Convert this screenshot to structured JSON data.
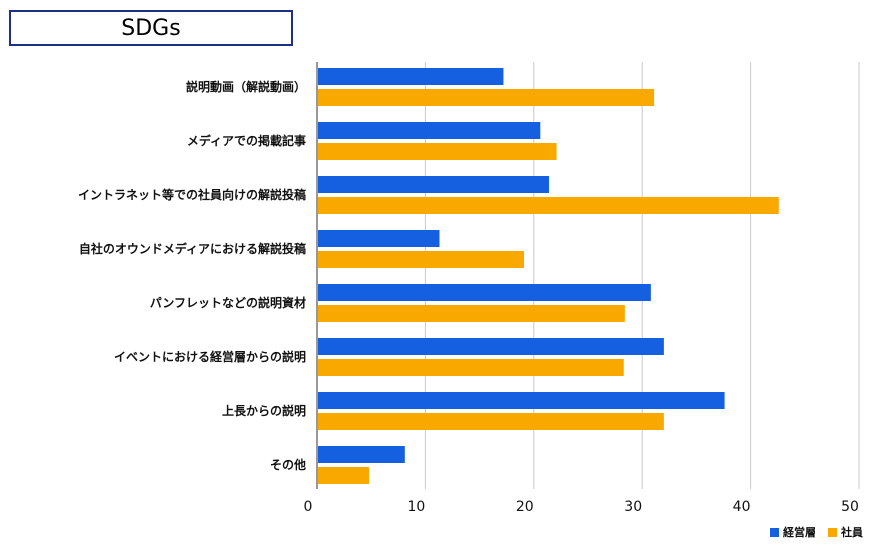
{
  "chart_data": {
    "type": "bar",
    "orientation": "horizontal",
    "title": "SDGs",
    "categories": [
      "説明動画（解説動画）",
      "メディアでの掲載記事",
      "イントラネット等での社員向けの解説投稿",
      "自社のオウンドメディアにおける解説投稿",
      "パンフレットなどの説明資材",
      "イベントにおける経営層からの説明",
      "上長からの説明",
      "その他"
    ],
    "series": [
      {
        "name": "経営層",
        "color": "#1560e0",
        "values": [
          17.2,
          20.6,
          21.4,
          11.3,
          30.8,
          32.0,
          37.6,
          8.1
        ]
      },
      {
        "name": "社員",
        "color": "#f9a800",
        "values": [
          31.1,
          22.1,
          42.6,
          19.1,
          28.4,
          28.3,
          32.0,
          4.8
        ]
      }
    ],
    "xlim": [
      0,
      50
    ],
    "xticks": [
      0,
      10,
      20,
      30,
      40,
      50
    ],
    "xlabel": "",
    "ylabel": "",
    "grid": true,
    "legend": "bottom-right"
  }
}
